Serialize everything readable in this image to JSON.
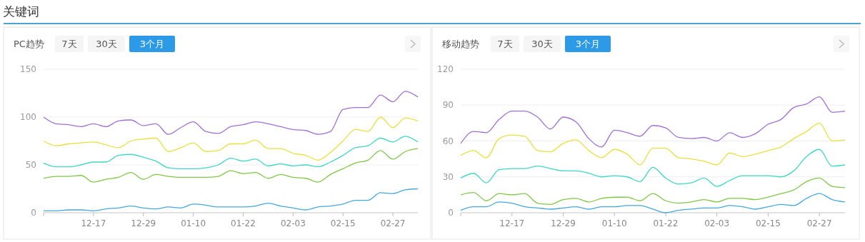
{
  "chart_data": [
    {
      "type": "other",
      "title": "关键词"
    },
    {
      "type": "line",
      "title": "PC趋势",
      "annotations": [
        "7天",
        "30天",
        "3个月"
      ],
      "grid": "y",
      "marker": "none",
      "line_style": "solid",
      "categories": [
        null,
        null,
        null,
        null,
        "12-17",
        null,
        null,
        null,
        "12-29",
        null,
        null,
        null,
        "01-10",
        null,
        null,
        null,
        "01-22",
        null,
        null,
        null,
        "02-03",
        null,
        null,
        null,
        "02-15",
        null,
        null,
        null,
        "02-27",
        null,
        null
      ],
      "ylim": [
        0,
        150
      ],
      "yticks": [
        0,
        50,
        100,
        150
      ],
      "series": [
        {
          "color": "#a070d8",
          "values": [
            100,
            93,
            92,
            90,
            93,
            90,
            96,
            97,
            91,
            93,
            82,
            89,
            95,
            85,
            83,
            90,
            92,
            95,
            93,
            90,
            87,
            86,
            82,
            85,
            108,
            110,
            110,
            123,
            116,
            127,
            121
          ]
        },
        {
          "color": "#e8e03c",
          "values": [
            75,
            70,
            72,
            73,
            74,
            71,
            68,
            75,
            77,
            78,
            64,
            68,
            73,
            64,
            65,
            72,
            72,
            76,
            67,
            67,
            62,
            60,
            55,
            63,
            75,
            87,
            85,
            100,
            89,
            99,
            96
          ]
        },
        {
          "color": "#3fd8c4",
          "values": [
            52,
            48,
            48,
            50,
            53,
            53,
            60,
            61,
            58,
            54,
            47,
            46,
            46,
            47,
            50,
            57,
            54,
            56,
            49,
            51,
            49,
            50,
            48,
            53,
            60,
            68,
            70,
            78,
            74,
            80,
            74
          ]
        },
        {
          "color": "#80c848",
          "values": [
            36,
            38,
            38,
            39,
            32,
            35,
            37,
            42,
            35,
            40,
            38,
            37,
            37,
            37,
            38,
            44,
            41,
            42,
            36,
            40,
            37,
            36,
            32,
            40,
            46,
            52,
            55,
            65,
            56,
            64,
            67
          ]
        },
        {
          "color": "#45a8e0",
          "values": [
            2,
            2,
            3,
            3,
            2,
            4,
            5,
            7,
            5,
            4,
            6,
            5,
            9,
            8,
            6,
            6,
            6,
            7,
            10,
            7,
            5,
            3,
            6,
            7,
            9,
            13,
            13,
            21,
            20,
            24,
            25
          ]
        }
      ]
    },
    {
      "type": "line",
      "title": "移动趋势",
      "annotations": [
        "7天",
        "30天",
        "3个月"
      ],
      "grid": "y",
      "marker": "none",
      "line_style": "solid",
      "categories": [
        null,
        null,
        null,
        null,
        "12-17",
        null,
        null,
        null,
        "12-29",
        null,
        null,
        null,
        "01-10",
        null,
        null,
        null,
        "01-22",
        null,
        null,
        null,
        "02-03",
        null,
        null,
        null,
        "02-15",
        null,
        null,
        null,
        "02-27",
        null,
        null
      ],
      "ylim": [
        0,
        120
      ],
      "yticks": [
        0,
        30,
        60,
        90,
        120
      ],
      "series": [
        {
          "color": "#a070d8",
          "values": [
            58,
            68,
            67,
            78,
            85,
            85,
            80,
            70,
            80,
            76,
            62,
            55,
            69,
            67,
            64,
            73,
            71,
            63,
            62,
            63,
            60,
            67,
            63,
            66,
            74,
            78,
            88,
            91,
            97,
            84,
            85
          ]
        },
        {
          "color": "#e8e03c",
          "values": [
            48,
            52,
            46,
            62,
            65,
            64,
            52,
            51,
            58,
            61,
            52,
            46,
            53,
            49,
            40,
            54,
            54,
            46,
            45,
            43,
            40,
            50,
            47,
            49,
            52,
            55,
            62,
            68,
            75,
            60,
            61
          ]
        },
        {
          "color": "#3fd8c4",
          "values": [
            29,
            33,
            25,
            36,
            37,
            37,
            39,
            37,
            35,
            35,
            33,
            30,
            31,
            30,
            26,
            38,
            29,
            24,
            25,
            29,
            22,
            27,
            31,
            31,
            31,
            30,
            35,
            47,
            53,
            39,
            40
          ]
        },
        {
          "color": "#80c848",
          "values": [
            15,
            17,
            10,
            16,
            15,
            16,
            8,
            7,
            11,
            12,
            9,
            12,
            13,
            13,
            10,
            16,
            10,
            8,
            9,
            11,
            9,
            12,
            12,
            11,
            13,
            16,
            19,
            26,
            29,
            22,
            21
          ]
        },
        {
          "color": "#45a8e0",
          "values": [
            2,
            5,
            5,
            9,
            8,
            5,
            4,
            3,
            4,
            5,
            3,
            5,
            5,
            6,
            6,
            3,
            0,
            2,
            3,
            4,
            4,
            6,
            5,
            3,
            5,
            7,
            6,
            12,
            16,
            11,
            9
          ]
        }
      ]
    }
  ]
}
